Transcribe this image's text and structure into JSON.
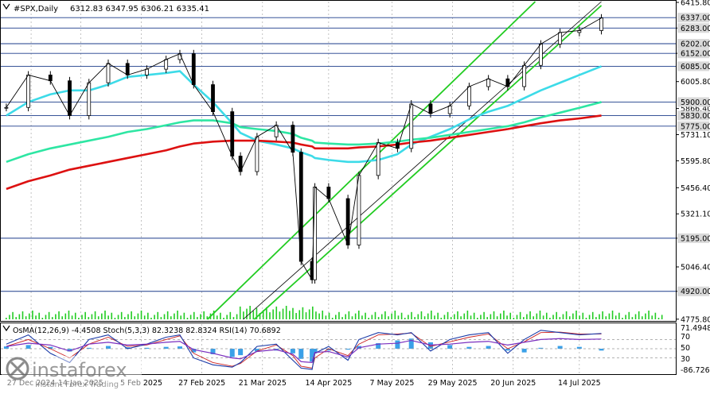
{
  "header": {
    "symbol": "#SPX,Daily",
    "ohlc": "6312.83 6347.95 6306.21 6335.41"
  },
  "indicator_header": "OsMA(12,26,9) -4.4508  Stoch(5,3,3) 82.3238 82.8324  RSI(14) 70.6892",
  "watermark": {
    "brand": "instaforex",
    "tagline": "Instant Forex Trading"
  },
  "colors": {
    "background": "#ffffff",
    "candle": "#000000",
    "ema_fast": "#3ddbe8",
    "ema_mid": "#2ee6a3",
    "ema_slow": "#dd1111",
    "channel": "#22cc22",
    "trendline": "#000000",
    "hline": "#1b3b8a",
    "label_bg": "#d9d9d9",
    "label_text": "#000000",
    "volume": "#22cc22",
    "osma": "#3aa0e8",
    "stoch_main": "#1a3aa8",
    "stoch_signal": "#cc2222",
    "rsi": "#7b2fbf"
  },
  "chart_data": {
    "type": "line",
    "title": "#SPX,Daily",
    "ylim": [
      4775,
      6420
    ],
    "x_ticks": [
      "27 Dec 2024",
      "14 Jan 2025",
      "5 Feb 2025",
      "27 Feb 2025",
      "21 Mar 2025",
      "14 Apr 2025",
      "7 May 2025",
      "29 May 2025",
      "20 Jun 2025",
      "14 Jul 2025"
    ],
    "y_ticks": [
      6415.8,
      6283.0,
      6152.0,
      6005.8,
      5866.4,
      5731.1,
      5595.8,
      5456.4,
      5321.1,
      5195.0,
      5046.4,
      4920.0,
      4775.8
    ],
    "level_lines": [
      6337.0,
      6283.0,
      6202.0,
      6152.0,
      6085.0,
      5900.0,
      5830.0,
      5775.0,
      5195.0,
      4920.0
    ],
    "y_tick_labels": [
      "6415.80",
      "6283.00",
      "6152.00",
      "6005.80",
      "5866.40",
      "5731.10",
      "5595.80",
      "5456.40",
      "5321.10",
      "5195.00",
      "5046.40",
      "4920.00",
      "4775.80"
    ],
    "level_labels": [
      "6337.00",
      "6283.00",
      "6202.00",
      "6152.00",
      "6085.00",
      "5900.00",
      "5830.00",
      "5775.00",
      "5195.00",
      "4920.00"
    ],
    "price_series": {
      "name": "#SPX",
      "x": [
        "2024-12-18",
        "2024-12-26",
        "2025-01-03",
        "2025-01-10",
        "2025-01-17",
        "2025-01-24",
        "2025-01-31",
        "2025-02-07",
        "2025-02-14",
        "2025-02-19",
        "2025-02-24",
        "2025-03-03",
        "2025-03-10",
        "2025-03-13",
        "2025-03-19",
        "2025-03-26",
        "2025-04-01",
        "2025-04-04",
        "2025-04-08",
        "2025-04-09",
        "2025-04-14",
        "2025-04-21",
        "2025-04-25",
        "2025-05-02",
        "2025-05-09",
        "2025-05-14",
        "2025-05-21",
        "2025-05-28",
        "2025-06-04",
        "2025-06-11",
        "2025-06-18",
        "2025-06-24",
        "2025-06-30",
        "2025-07-07",
        "2025-07-14",
        "2025-07-22"
      ],
      "values": [
        5872,
        6040,
        6010,
        5830,
        6000,
        6100,
        6040,
        6070,
        6120,
        6150,
        5990,
        5850,
        5620,
        5540,
        5720,
        5780,
        5640,
        5075,
        4980,
        5460,
        5400,
        5160,
        5520,
        5690,
        5660,
        5890,
        5840,
        5880,
        5980,
        6020,
        5980,
        6090,
        6200,
        6260,
        6270,
        6335
      ]
    },
    "series": [
      {
        "name": "",
        "values": [
          5830,
          5900,
          5940,
          5960,
          5960,
          5990,
          6030,
          6040,
          6050,
          6060,
          5990,
          5900,
          5790,
          5740,
          5700,
          5680,
          5660,
          5640,
          5620,
          5610,
          5600,
          5590,
          5590,
          5600,
          5630,
          5680,
          5720,
          5760,
          5810,
          5850,
          5880,
          5920,
          5960,
          6000,
          6040,
          6085
        ]
      },
      {
        "name": "",
        "values": [
          5590,
          5630,
          5660,
          5680,
          5700,
          5720,
          5745,
          5760,
          5780,
          5795,
          5805,
          5805,
          5790,
          5770,
          5760,
          5750,
          5735,
          5715,
          5700,
          5690,
          5685,
          5680,
          5680,
          5685,
          5695,
          5705,
          5715,
          5730,
          5745,
          5760,
          5775,
          5795,
          5820,
          5845,
          5870,
          5900
        ]
      },
      {
        "name": "",
        "values": [
          5450,
          5490,
          5520,
          5550,
          5570,
          5590,
          5610,
          5630,
          5650,
          5670,
          5685,
          5695,
          5700,
          5700,
          5700,
          5695,
          5690,
          5680,
          5670,
          5660,
          5660,
          5660,
          5665,
          5670,
          5680,
          5690,
          5700,
          5715,
          5730,
          5745,
          5760,
          5775,
          5790,
          5805,
          5815,
          5830
        ]
      }
    ],
    "oscillator": {
      "labels": [
        "71.4948",
        "70",
        "50",
        "30",
        "-86.7262"
      ],
      "osma": [
        5,
        8,
        4,
        -6,
        2,
        6,
        3,
        2,
        4,
        5,
        -8,
        -12,
        -18,
        -14,
        -6,
        -4,
        -10,
        -22,
        -28,
        -10,
        -4,
        -2,
        6,
        12,
        18,
        22,
        14,
        8,
        4,
        6,
        -4,
        -8,
        2,
        6,
        4,
        -4
      ],
      "stoch_main": [
        60,
        80,
        40,
        20,
        70,
        80,
        50,
        60,
        75,
        80,
        30,
        15,
        10,
        20,
        55,
        60,
        25,
        8,
        5,
        40,
        55,
        25,
        70,
        85,
        80,
        85,
        45,
        70,
        80,
        85,
        40,
        70,
        90,
        85,
        80,
        83
      ],
      "stoch_signal": [
        55,
        70,
        50,
        30,
        60,
        75,
        55,
        58,
        70,
        78,
        40,
        20,
        12,
        18,
        45,
        58,
        35,
        12,
        8,
        30,
        50,
        35,
        60,
        80,
        82,
        84,
        55,
        65,
        75,
        82,
        50,
        65,
        85,
        86,
        82,
        82
      ],
      "rsi": [
        55,
        62,
        58,
        45,
        60,
        64,
        58,
        60,
        64,
        66,
        48,
        40,
        30,
        28,
        44,
        48,
        38,
        22,
        20,
        42,
        44,
        32,
        52,
        60,
        62,
        68,
        58,
        60,
        64,
        66,
        58,
        64,
        70,
        72,
        70,
        71
      ]
    }
  }
}
